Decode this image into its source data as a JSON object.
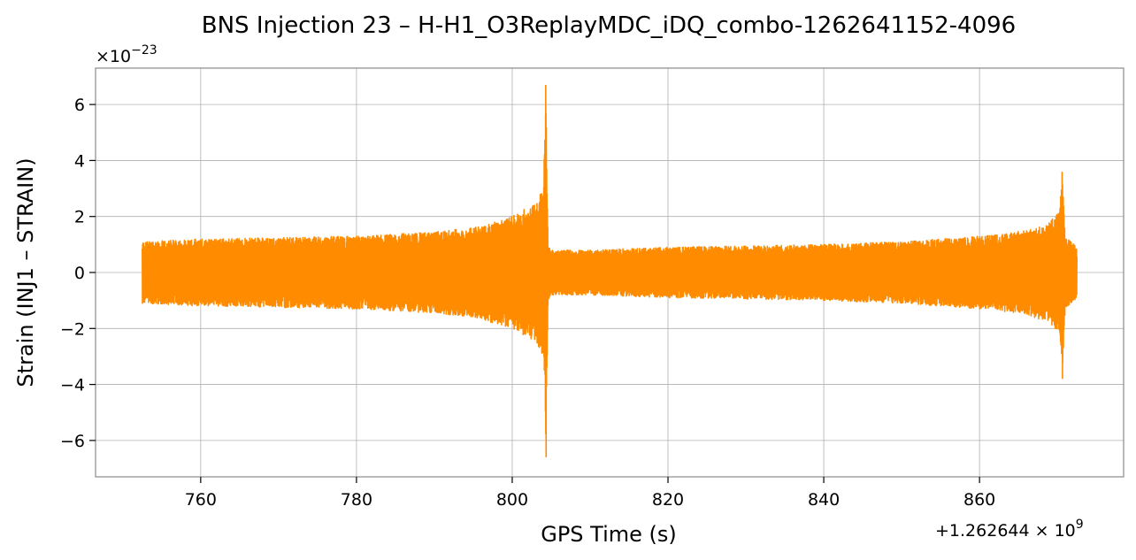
{
  "chart_data": {
    "type": "line",
    "title": "BNS Injection 23 – H-H1_O3ReplayMDC_iDQ_combo-1262641152-4096",
    "xlabel": "GPS Time (s)",
    "ylabel": "Strain (INJ1 – STRAIN)",
    "x_offset_label": "+1.262644 × 10",
    "x_offset_exp": "9",
    "y_scale_label": "×10",
    "y_scale_exp": "−23",
    "xlim": [
      746.5,
      878.5
    ],
    "ylim": [
      -7.3,
      7.3
    ],
    "xticks": [
      760,
      780,
      800,
      820,
      840,
      860
    ],
    "xtick_labels": [
      "760",
      "780",
      "800",
      "820",
      "840",
      "860"
    ],
    "yticks": [
      -6,
      -4,
      -2,
      0,
      2,
      4,
      6
    ],
    "ytick_labels": [
      "−6",
      "−4",
      "−2",
      "0",
      "2",
      "4",
      "6"
    ],
    "grid": true,
    "series": [
      {
        "color": "#ff8c00",
        "x_range": [
          752.5,
          872.5
        ],
        "envelope": {
          "x": [
            752.5,
            760,
            770,
            780,
            790,
            795,
            800,
            803,
            804.0,
            804.3,
            804.6,
            805,
            810,
            820,
            830,
            840,
            850,
            860,
            866,
            869,
            870.3,
            870.6,
            871,
            872.5
          ],
          "upper": [
            1.1,
            1.2,
            1.25,
            1.3,
            1.45,
            1.6,
            2.0,
            2.5,
            3.0,
            6.7,
            1.0,
            0.8,
            0.8,
            0.9,
            0.95,
            1.0,
            1.1,
            1.3,
            1.5,
            1.8,
            2.2,
            3.6,
            1.3,
            0.9
          ],
          "lower": [
            -1.1,
            -1.2,
            -1.25,
            -1.3,
            -1.45,
            -1.6,
            -2.0,
            -2.5,
            -3.0,
            -6.6,
            -1.0,
            -0.8,
            -0.8,
            -0.9,
            -0.95,
            -1.0,
            -1.1,
            -1.3,
            -1.5,
            -1.8,
            -2.2,
            -3.8,
            -1.3,
            -0.9
          ]
        }
      }
    ]
  }
}
